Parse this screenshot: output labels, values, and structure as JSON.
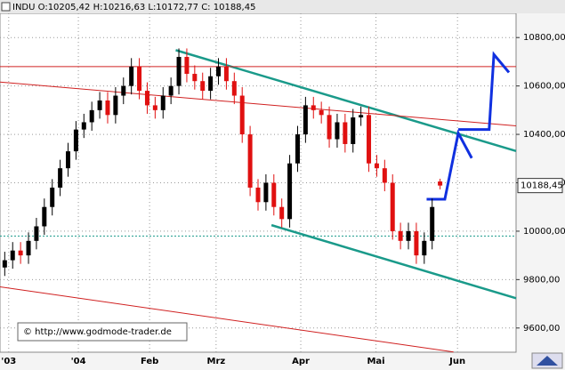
{
  "chart_data": {
    "type": "candlestick",
    "title": "INDU O:10205,42 H:10216,63 L:10172,77 C: 10188,45",
    "annotation": "© http://www.godmode-trader.de",
    "close_label": "10188,45",
    "up_color": "#000000",
    "down_color": "#e01010",
    "grid": true,
    "x": [
      0,
      1,
      2,
      3,
      4,
      5,
      6,
      7,
      8,
      9,
      10,
      11,
      12,
      13,
      14,
      15,
      16,
      17,
      18,
      19,
      20,
      21,
      22,
      23,
      24,
      25,
      26,
      27,
      28,
      29,
      30,
      31,
      32,
      33,
      34,
      35,
      36,
      37,
      38,
      39,
      40,
      41,
      42,
      43,
      44,
      45,
      46,
      47,
      48,
      49,
      50,
      51,
      52,
      53,
      54,
      55
    ],
    "open": [
      9850,
      9880,
      9920,
      9900,
      9960,
      10020,
      10100,
      10180,
      10260,
      10330,
      10420,
      10450,
      10500,
      10540,
      10480,
      10560,
      10600,
      10680,
      10580,
      10520,
      10500,
      10560,
      10600,
      10720,
      10650,
      10620,
      10580,
      10640,
      10680,
      10620,
      10560,
      10400,
      10180,
      10120,
      10200,
      10100,
      10050,
      10280,
      10400,
      10520,
      10500,
      10480,
      10380,
      10450,
      10360,
      10470,
      10480,
      10280,
      10260,
      10200,
      10000,
      9960,
      10000,
      9900,
      9960,
      10205.42
    ],
    "high": [
      9915,
      9955,
      9955,
      9995,
      10055,
      10135,
      10215,
      10295,
      10365,
      10455,
      10485,
      10535,
      10575,
      10575,
      10595,
      10635,
      10715,
      10715,
      10615,
      10555,
      10595,
      10635,
      10755,
      10755,
      10685,
      10655,
      10675,
      10715,
      10715,
      10655,
      10595,
      10435,
      10215,
      10235,
      10235,
      10135,
      10315,
      10435,
      10555,
      10555,
      10535,
      10515,
      10485,
      10485,
      10505,
      10515,
      10515,
      10315,
      10295,
      10235,
      10035,
      10035,
      10035,
      9995,
      10135,
      10216.63
    ],
    "low": [
      9815,
      9845,
      9865,
      9865,
      9925,
      9985,
      10065,
      10145,
      10225,
      10295,
      10385,
      10415,
      10465,
      10445,
      10445,
      10525,
      10565,
      10545,
      10485,
      10465,
      10465,
      10525,
      10565,
      10615,
      10585,
      10545,
      10545,
      10605,
      10585,
      10525,
      10365,
      10145,
      10085,
      10085,
      10065,
      10015,
      10015,
      10245,
      10365,
      10465,
      10445,
      10345,
      10345,
      10325,
      10325,
      10435,
      10245,
      10225,
      10165,
      9965,
      9925,
      9925,
      9865,
      9865,
      9925,
      10172.77
    ],
    "close": [
      9880,
      9920,
      9900,
      9960,
      10020,
      10100,
      10180,
      10260,
      10330,
      10420,
      10450,
      10500,
      10540,
      10480,
      10560,
      10600,
      10680,
      10580,
      10520,
      10500,
      10560,
      10600,
      10720,
      10650,
      10620,
      10580,
      10640,
      10680,
      10620,
      10560,
      10400,
      10180,
      10120,
      10200,
      10100,
      10050,
      10280,
      10400,
      10520,
      10500,
      10480,
      10380,
      10450,
      10360,
      10470,
      10480,
      10280,
      10260,
      10200,
      10000,
      9960,
      10000,
      9900,
      9960,
      10100,
      10188.45
    ],
    "xlim": [
      -0.6,
      64.6
    ],
    "ylim": [
      9500,
      10900
    ],
    "xticks": [
      {
        "value": 0.5,
        "label": "'03"
      },
      {
        "value": 9.3,
        "label": "'04"
      },
      {
        "value": 18.3,
        "label": "Feb"
      },
      {
        "value": 26.7,
        "label": "Mrz"
      },
      {
        "value": 37.4,
        "label": "Apr"
      },
      {
        "value": 46.9,
        "label": "Mai"
      },
      {
        "value": 57.2,
        "label": "Jun"
      }
    ],
    "yticks": [
      {
        "value": 9600,
        "label": "9600,00"
      },
      {
        "value": 9800,
        "label": "9800,00"
      },
      {
        "value": 10000,
        "label": "10000,00"
      },
      {
        "value": 10200,
        "label": "10200,00"
      },
      {
        "value": 10400,
        "label": "10400,00"
      },
      {
        "value": 10600,
        "label": "10600,00"
      },
      {
        "value": 10800,
        "label": "10800,00"
      }
    ],
    "lines": [
      {
        "color": "#1a9a8a",
        "width": 2.5,
        "x": [
          21.6,
          64.6
        ],
        "y": [
          10748,
          10331
        ]
      },
      {
        "color": "#1a9a8a",
        "width": 2.5,
        "x": [
          33.7,
          64.6
        ],
        "y": [
          10025,
          9723
        ]
      },
      {
        "color": "#d02020",
        "width": 1,
        "x": [
          -0.6,
          64.6
        ],
        "y": [
          10616,
          10435
        ]
      },
      {
        "color": "#d02020",
        "width": 1,
        "x": [
          -0.6,
          56.7
        ],
        "y": [
          9770,
          9501
        ]
      },
      {
        "color": "#d02020",
        "width": 1,
        "x": [
          -0.6,
          64.6
        ],
        "y": [
          10680,
          10680
        ]
      },
      {
        "color": "#1a9a8a",
        "width": 1,
        "dashed": true,
        "x": [
          -0.6,
          64.6
        ],
        "y": [
          9980,
          9980
        ]
      },
      {
        "color": "#1030e0",
        "width": 3,
        "x": [
          53.3,
          55.6,
          57.3,
          59.0
        ],
        "y": [
          10132,
          10132,
          10405,
          10302
        ]
      },
      {
        "color": "#1030e0",
        "width": 3,
        "x": [
          57.3,
          61.2,
          61.8,
          63.7
        ],
        "y": [
          10420,
          10420,
          10730,
          10656
        ]
      }
    ]
  }
}
